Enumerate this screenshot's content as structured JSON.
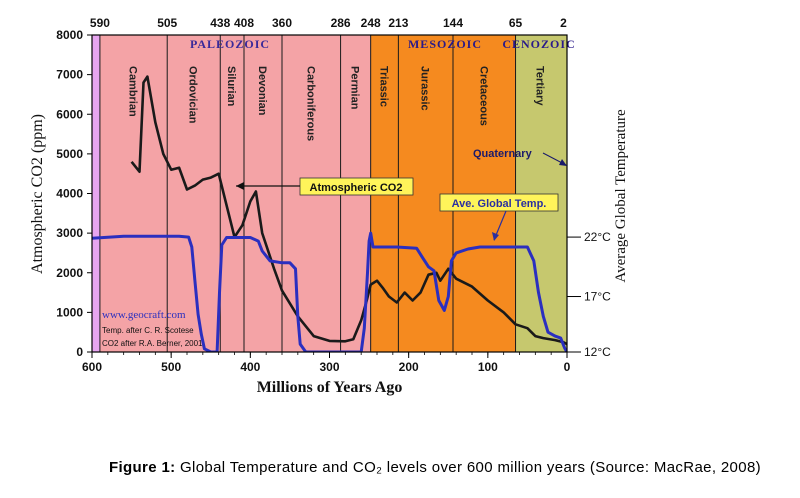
{
  "chart_data": {
    "type": "line",
    "x_axis": {
      "label": "Millions of Years Ago",
      "range": [
        600,
        0
      ],
      "ticks": [
        "600",
        "500",
        "400",
        "300",
        "200",
        "100",
        "0"
      ],
      "top_ticks": [
        "590",
        "505",
        "438",
        "408",
        "360",
        "286",
        "248",
        "213",
        "144",
        "65",
        "2"
      ],
      "top_tick_values": [
        590,
        505,
        438,
        408,
        360,
        286,
        248,
        213,
        144,
        65,
        2
      ]
    },
    "y_axis_left": {
      "label": "Atmospheric CO2 (ppm)",
      "range": [
        0,
        8000
      ],
      "ticks": [
        "0",
        "1000",
        "2000",
        "3000",
        "4000",
        "5000",
        "6000",
        "7000",
        "8000"
      ]
    },
    "y_axis_right": {
      "label": "Average Global Temperature",
      "ticks": [
        {
          "label": "22°C",
          "value": 2900
        },
        {
          "label": "17°C",
          "value": 1400
        },
        {
          "label": "12°C",
          "value": 0
        }
      ]
    },
    "eras": [
      {
        "name": "PALEOZOIC",
        "from": 590,
        "to": 248,
        "color": "#f4a3a6"
      },
      {
        "name": "MESOZOIC",
        "from": 248,
        "to": 65,
        "color": "#f58a1f"
      },
      {
        "name": "CENOZOIC",
        "from": 65,
        "to": 0,
        "color": "#c6c86e"
      }
    ],
    "pre_cambrian_color": "#e7a5f0",
    "periods": [
      {
        "name": "Cambrian",
        "from": 590,
        "to": 505
      },
      {
        "name": "Ordovician",
        "from": 505,
        "to": 438
      },
      {
        "name": "Silurian",
        "from": 438,
        "to": 408
      },
      {
        "name": "Devonian",
        "from": 408,
        "to": 360
      },
      {
        "name": "Carboniferous",
        "from": 360,
        "to": 286
      },
      {
        "name": "Permian",
        "from": 286,
        "to": 248
      },
      {
        "name": "Triassic",
        "from": 248,
        "to": 213
      },
      {
        "name": "Jurassic",
        "from": 213,
        "to": 144
      },
      {
        "name": "Cretaceous",
        "from": 144,
        "to": 65
      },
      {
        "name": "Tertiary",
        "from": 65,
        "to": 2
      }
    ],
    "series": [
      {
        "name": "Atmospheric CO2",
        "color": "#1a1a1a",
        "points": [
          [
            550,
            4800
          ],
          [
            540,
            4550
          ],
          [
            535,
            6800
          ],
          [
            530,
            6950
          ],
          [
            520,
            5800
          ],
          [
            510,
            5000
          ],
          [
            500,
            4600
          ],
          [
            490,
            4650
          ],
          [
            480,
            4100
          ],
          [
            470,
            4200
          ],
          [
            460,
            4350
          ],
          [
            450,
            4400
          ],
          [
            445,
            4450
          ],
          [
            440,
            4500
          ],
          [
            430,
            3700
          ],
          [
            420,
            2900
          ],
          [
            410,
            3200
          ],
          [
            400,
            3800
          ],
          [
            393,
            4050
          ],
          [
            385,
            3000
          ],
          [
            370,
            2100
          ],
          [
            360,
            1550
          ],
          [
            340,
            900
          ],
          [
            320,
            400
          ],
          [
            300,
            280
          ],
          [
            280,
            270
          ],
          [
            270,
            320
          ],
          [
            260,
            800
          ],
          [
            253,
            1300
          ],
          [
            248,
            1700
          ],
          [
            240,
            1800
          ],
          [
            232,
            1600
          ],
          [
            225,
            1400
          ],
          [
            215,
            1250
          ],
          [
            205,
            1500
          ],
          [
            195,
            1300
          ],
          [
            185,
            1500
          ],
          [
            175,
            1950
          ],
          [
            165,
            2000
          ],
          [
            160,
            1800
          ],
          [
            150,
            2100
          ],
          [
            140,
            1850
          ],
          [
            120,
            1650
          ],
          [
            100,
            1300
          ],
          [
            80,
            1000
          ],
          [
            65,
            700
          ],
          [
            50,
            600
          ],
          [
            40,
            400
          ],
          [
            30,
            350
          ],
          [
            15,
            300
          ],
          [
            5,
            250
          ],
          [
            0,
            200
          ]
        ]
      },
      {
        "name": "Ave. Global Temp.",
        "color": "#2b2fbf",
        "points": [
          [
            600,
            2870
          ],
          [
            560,
            2920
          ],
          [
            520,
            2920
          ],
          [
            490,
            2920
          ],
          [
            478,
            2900
          ],
          [
            474,
            2650
          ],
          [
            470,
            1800
          ],
          [
            466,
            950
          ],
          [
            462,
            450
          ],
          [
            458,
            80
          ],
          [
            450,
            0
          ],
          [
            442,
            0
          ],
          [
            439,
            1500
          ],
          [
            436,
            2700
          ],
          [
            430,
            2890
          ],
          [
            400,
            2890
          ],
          [
            390,
            2800
          ],
          [
            385,
            2550
          ],
          [
            375,
            2300
          ],
          [
            360,
            2250
          ],
          [
            350,
            2250
          ],
          [
            343,
            2100
          ],
          [
            340,
            900
          ],
          [
            337,
            200
          ],
          [
            330,
            0
          ],
          [
            260,
            0
          ],
          [
            256,
            600
          ],
          [
            252,
            2000
          ],
          [
            250,
            2800
          ],
          [
            248,
            3000
          ],
          [
            245,
            2650
          ],
          [
            235,
            2650
          ],
          [
            215,
            2650
          ],
          [
            190,
            2620
          ],
          [
            183,
            2400
          ],
          [
            175,
            2150
          ],
          [
            168,
            2050
          ],
          [
            162,
            1300
          ],
          [
            155,
            1050
          ],
          [
            150,
            1400
          ],
          [
            146,
            2300
          ],
          [
            140,
            2500
          ],
          [
            125,
            2600
          ],
          [
            110,
            2650
          ],
          [
            80,
            2650
          ],
          [
            50,
            2650
          ],
          [
            42,
            2300
          ],
          [
            36,
            1500
          ],
          [
            30,
            900
          ],
          [
            24,
            500
          ],
          [
            15,
            400
          ],
          [
            8,
            350
          ],
          [
            3,
            100
          ],
          [
            0,
            0
          ]
        ]
      }
    ],
    "annotations": {
      "co2_label": "Atmospheric CO2",
      "temp_label": "Ave. Global Temp.",
      "quaternary_label": "Quaternary",
      "credit_site": "www.geocraft.com",
      "credit_temp": "Temp. after C. R. Scotese",
      "credit_co2": "CO2 after R.A. Berner, 2001"
    }
  },
  "caption": {
    "prefix": "Figure 1:",
    "text": " Global Temperature and CO₂ levels over 600 million years (Source: MacRae, 2008)"
  }
}
